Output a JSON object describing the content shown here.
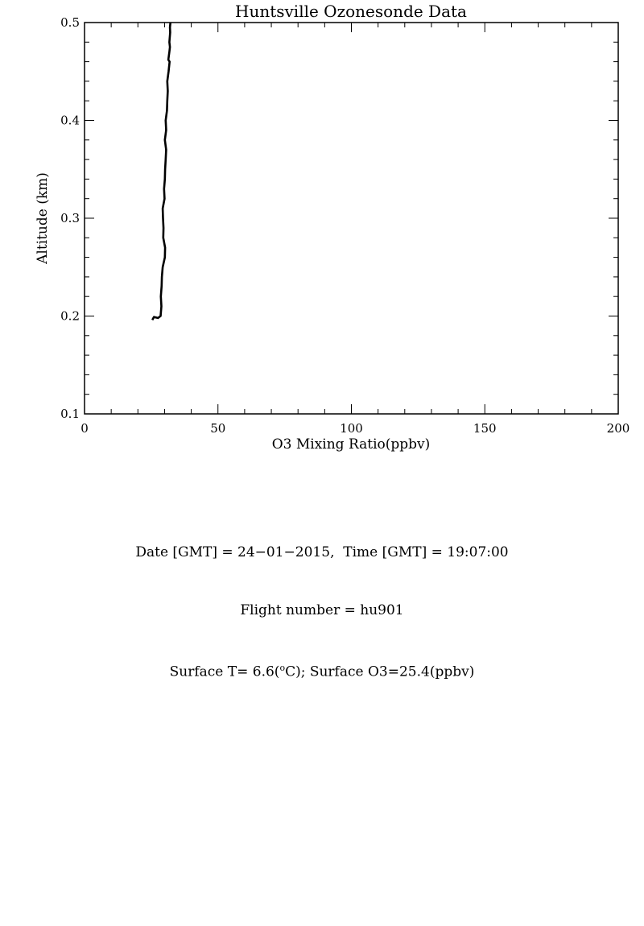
{
  "chart_data": {
    "type": "line",
    "title": "Huntsville Ozonesonde Data",
    "xlabel": "O3 Mixing Ratio(ppbv)",
    "ylabel": "Altitude (km)",
    "xlim": [
      0,
      200
    ],
    "ylim": [
      0.1,
      0.5
    ],
    "x_ticks": [
      0,
      50,
      100,
      150,
      200
    ],
    "x_tick_labels": [
      "0",
      "50",
      "100",
      "150",
      "200"
    ],
    "y_ticks": [
      0.1,
      0.2,
      0.3,
      0.4,
      0.5
    ],
    "y_tick_labels": [
      "0.1",
      "0.2",
      "0.3",
      "0.4",
      "0.5"
    ],
    "grid": false,
    "line_color": "#000000",
    "series": [
      {
        "x": [
          25.4,
          26.0,
          27.5,
          28.5,
          28.8,
          28.6,
          28.9,
          29.0,
          29.3,
          30.1,
          30.2,
          29.5,
          29.6,
          29.4,
          29.3,
          30.0,
          29.8,
          30.1,
          30.2,
          30.4,
          30.6,
          30.1,
          30.6,
          30.4,
          30.9,
          31.0,
          31.2,
          31.0,
          31.5,
          31.9,
          31.4,
          31.8,
          32.0,
          31.8,
          32.1,
          32.0,
          32.2
        ],
        "y": [
          0.196,
          0.199,
          0.198,
          0.2,
          0.21,
          0.22,
          0.231,
          0.24,
          0.25,
          0.26,
          0.27,
          0.28,
          0.29,
          0.3,
          0.31,
          0.32,
          0.33,
          0.34,
          0.35,
          0.36,
          0.37,
          0.38,
          0.39,
          0.4,
          0.41,
          0.42,
          0.43,
          0.44,
          0.45,
          0.46,
          0.462,
          0.47,
          0.475,
          0.48,
          0.49,
          0.495,
          0.5
        ]
      }
    ]
  },
  "info": {
    "line1": "Date [GMT] = 24−01−2015,  Time [GMT] = 19:07:00",
    "line2": "Flight number = hu901",
    "line3_prefix": "Surface T= 6.6(",
    "line3_sup": "o",
    "line3_suffix": "C); Surface O3=25.4(ppbv)"
  }
}
